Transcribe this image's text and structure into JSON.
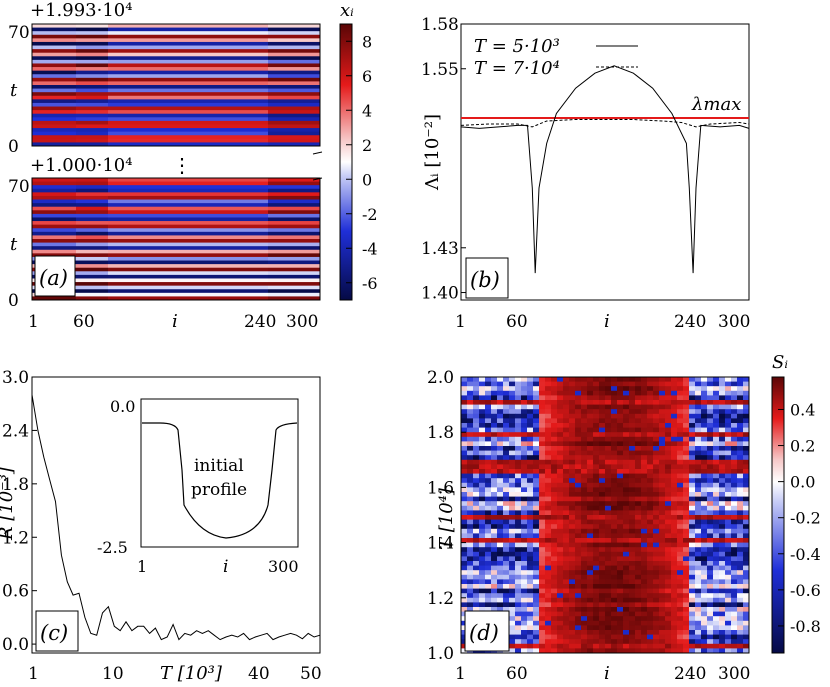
{
  "chart_data": [
    {
      "panel": "(a)",
      "type": "heatmap",
      "xlabel": "i",
      "ylabel": "t",
      "x_ticks": [
        "1",
        "60",
        "240",
        "300"
      ],
      "top_offset": "+1.993·10⁴",
      "bottom_offset": "+1.000·10⁴",
      "y_ticks_top": [
        "70",
        "0"
      ],
      "y_ticks_bottom": [
        "70",
        "0"
      ],
      "break_mark": "⋮",
      "colorbar": {
        "label": "xᵢ",
        "ticks": [
          "8",
          "6",
          "4",
          "2",
          "0",
          "-2",
          "-4",
          "-6"
        ],
        "range": [
          -7,
          9
        ]
      }
    },
    {
      "panel": "(b)",
      "type": "line",
      "ylabel": "Λᵢ [10⁻²]",
      "xlabel": "i",
      "x_ticks": [
        "1",
        "60",
        "i",
        "240",
        "300"
      ],
      "y_ticks": [
        "1.58",
        "1.55",
        "1.43",
        "1.40"
      ],
      "series": [
        {
          "name": "T = 5·10³",
          "style": "solid",
          "x": [
            1,
            20,
            40,
            60,
            70,
            75,
            78,
            82,
            90,
            100,
            120,
            140,
            160,
            180,
            200,
            220,
            235,
            238,
            242,
            245,
            250,
            270,
            290,
            300
          ],
          "y": [
            1.511,
            1.51,
            1.511,
            1.512,
            1.512,
            1.47,
            1.413,
            1.47,
            1.5,
            1.52,
            1.537,
            1.547,
            1.552,
            1.547,
            1.537,
            1.52,
            1.5,
            1.47,
            1.413,
            1.47,
            1.512,
            1.511,
            1.512,
            1.51
          ]
        },
        {
          "name": "T = 7·10⁴",
          "style": "dashed",
          "x": [
            1,
            30,
            60,
            75,
            90,
            120,
            150,
            180,
            210,
            230,
            245,
            260,
            290,
            300
          ],
          "y": [
            1.512,
            1.513,
            1.513,
            1.511,
            1.515,
            1.516,
            1.516,
            1.516,
            1.515,
            1.514,
            1.511,
            1.513,
            1.514,
            1.513
          ]
        }
      ],
      "annotation": "λmax",
      "lambda_max": 1.517
    },
    {
      "panel": "(c)",
      "type": "line",
      "ylabel": "R [10⁻³]",
      "xlabel": "T [10³]",
      "x_ticks": [
        "1",
        "10",
        "T [10³]",
        "40",
        "50"
      ],
      "y_ticks": [
        "3.0",
        "2.4",
        "1.8",
        "1.2",
        "0.6",
        "0.0"
      ],
      "x": [
        1,
        2,
        3,
        4,
        5,
        6,
        7,
        8,
        9,
        10,
        11,
        12,
        13,
        14,
        15,
        16,
        17,
        18,
        19,
        20,
        21,
        22,
        23,
        24,
        25,
        26,
        27,
        28,
        29,
        30,
        31,
        32,
        33,
        34,
        35,
        36,
        37,
        38,
        39,
        40,
        41,
        42,
        43,
        44,
        45,
        46,
        47,
        48,
        49,
        50
      ],
      "y": [
        2.8,
        2.4,
        2.1,
        1.85,
        1.6,
        1.0,
        0.7,
        0.55,
        0.57,
        0.3,
        0.12,
        0.1,
        0.35,
        0.42,
        0.2,
        0.15,
        0.25,
        0.15,
        0.2,
        0.2,
        0.12,
        0.18,
        0.05,
        0.08,
        0.22,
        0.05,
        0.12,
        0.1,
        0.15,
        0.12,
        0.15,
        0.1,
        0.05,
        0.08,
        0.1,
        0.08,
        0.12,
        0.05,
        0.08,
        0.1,
        0.12,
        0.05,
        0.08,
        0.1,
        0.12,
        0.1,
        0.06,
        0.12,
        0.08,
        0.1
      ],
      "inset": {
        "label": [
          "initial",
          "profile"
        ],
        "x_ticks": [
          "1",
          "i",
          "300"
        ],
        "y_ticks": [
          "0.0",
          "-2.5"
        ]
      }
    },
    {
      "panel": "(d)",
      "type": "heatmap",
      "xlabel": "i",
      "ylabel": "T [10⁴]",
      "x_ticks": [
        "1",
        "60",
        "i",
        "240",
        "300"
      ],
      "y_ticks": [
        "2.0",
        "1.8",
        "1.6",
        "1.4",
        "1.2",
        "1.0"
      ],
      "colorbar": {
        "label": "Sᵢ",
        "ticks": [
          "0.4",
          "0.2",
          "0.0",
          "-0.2",
          "-0.4",
          "-0.6",
          "-0.8"
        ],
        "range": [
          -0.95,
          0.58
        ]
      }
    }
  ]
}
